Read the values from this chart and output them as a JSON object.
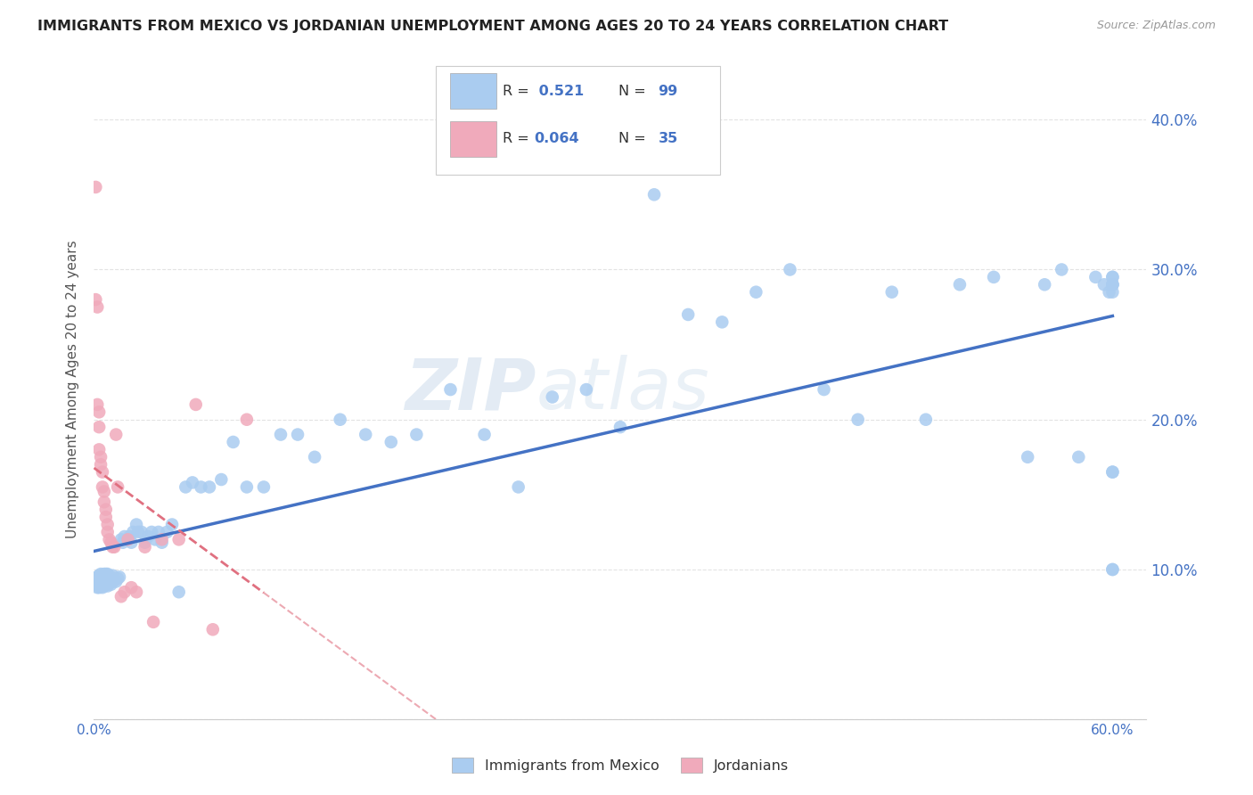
{
  "title": "IMMIGRANTS FROM MEXICO VS JORDANIAN UNEMPLOYMENT AMONG AGES 20 TO 24 YEARS CORRELATION CHART",
  "source": "Source: ZipAtlas.com",
  "ylabel": "Unemployment Among Ages 20 to 24 years",
  "xlim": [
    0.0,
    0.62
  ],
  "ylim": [
    0.0,
    0.44
  ],
  "xticks": [
    0.0,
    0.1,
    0.2,
    0.3,
    0.4,
    0.5,
    0.6
  ],
  "xticklabels": [
    "0.0%",
    "",
    "",
    "",
    "",
    "",
    "60.0%"
  ],
  "yticks": [
    0.0,
    0.1,
    0.2,
    0.3,
    0.4
  ],
  "yticklabels": [
    "",
    "10.0%",
    "20.0%",
    "30.0%",
    "40.0%"
  ],
  "mexico_R": "0.521",
  "mexico_N": "99",
  "jordan_R": "0.064",
  "jordan_N": "35",
  "mexico_color": "#aaccf0",
  "jordan_color": "#f0aabb",
  "mexico_line_color": "#4472c4",
  "jordan_line_color": "#e07080",
  "background_color": "#ffffff",
  "grid_color": "#d8d8d8",
  "mexico_x": [
    0.001,
    0.002,
    0.002,
    0.003,
    0.003,
    0.003,
    0.004,
    0.004,
    0.004,
    0.005,
    0.005,
    0.005,
    0.006,
    0.006,
    0.006,
    0.007,
    0.007,
    0.007,
    0.008,
    0.008,
    0.008,
    0.009,
    0.009,
    0.01,
    0.01,
    0.011,
    0.011,
    0.012,
    0.013,
    0.014,
    0.015,
    0.016,
    0.017,
    0.018,
    0.02,
    0.021,
    0.022,
    0.023,
    0.025,
    0.026,
    0.028,
    0.03,
    0.032,
    0.034,
    0.036,
    0.038,
    0.04,
    0.043,
    0.046,
    0.05,
    0.054,
    0.058,
    0.063,
    0.068,
    0.075,
    0.082,
    0.09,
    0.1,
    0.11,
    0.12,
    0.13,
    0.145,
    0.16,
    0.175,
    0.19,
    0.21,
    0.23,
    0.25,
    0.27,
    0.29,
    0.31,
    0.33,
    0.35,
    0.37,
    0.39,
    0.41,
    0.43,
    0.45,
    0.47,
    0.49,
    0.51,
    0.53,
    0.55,
    0.56,
    0.57,
    0.58,
    0.59,
    0.595,
    0.598,
    0.6,
    0.6,
    0.6,
    0.6,
    0.6,
    0.6,
    0.6,
    0.6,
    0.6,
    0.6
  ],
  "mexico_y": [
    0.09,
    0.088,
    0.095,
    0.088,
    0.092,
    0.096,
    0.09,
    0.093,
    0.097,
    0.088,
    0.092,
    0.096,
    0.089,
    0.093,
    0.097,
    0.09,
    0.093,
    0.097,
    0.089,
    0.093,
    0.097,
    0.091,
    0.095,
    0.09,
    0.095,
    0.092,
    0.096,
    0.093,
    0.092,
    0.094,
    0.095,
    0.12,
    0.118,
    0.122,
    0.12,
    0.122,
    0.118,
    0.125,
    0.13,
    0.125,
    0.125,
    0.118,
    0.122,
    0.125,
    0.12,
    0.125,
    0.118,
    0.125,
    0.13,
    0.085,
    0.155,
    0.158,
    0.155,
    0.155,
    0.16,
    0.185,
    0.155,
    0.155,
    0.19,
    0.19,
    0.175,
    0.2,
    0.19,
    0.185,
    0.19,
    0.22,
    0.19,
    0.155,
    0.215,
    0.22,
    0.195,
    0.35,
    0.27,
    0.265,
    0.285,
    0.3,
    0.22,
    0.2,
    0.285,
    0.2,
    0.29,
    0.295,
    0.175,
    0.29,
    0.3,
    0.175,
    0.295,
    0.29,
    0.285,
    0.165,
    0.285,
    0.29,
    0.165,
    0.29,
    0.295,
    0.1,
    0.1,
    0.29,
    0.295
  ],
  "jordan_x": [
    0.001,
    0.001,
    0.002,
    0.002,
    0.003,
    0.003,
    0.003,
    0.004,
    0.004,
    0.005,
    0.005,
    0.006,
    0.006,
    0.007,
    0.007,
    0.008,
    0.008,
    0.009,
    0.01,
    0.011,
    0.012,
    0.013,
    0.014,
    0.016,
    0.018,
    0.02,
    0.022,
    0.025,
    0.03,
    0.035,
    0.04,
    0.05,
    0.06,
    0.07,
    0.09
  ],
  "jordan_y": [
    0.355,
    0.28,
    0.275,
    0.21,
    0.205,
    0.195,
    0.18,
    0.175,
    0.17,
    0.165,
    0.155,
    0.152,
    0.145,
    0.14,
    0.135,
    0.13,
    0.125,
    0.12,
    0.118,
    0.115,
    0.115,
    0.19,
    0.155,
    0.082,
    0.085,
    0.12,
    0.088,
    0.085,
    0.115,
    0.065,
    0.12,
    0.12,
    0.21,
    0.06,
    0.2
  ]
}
